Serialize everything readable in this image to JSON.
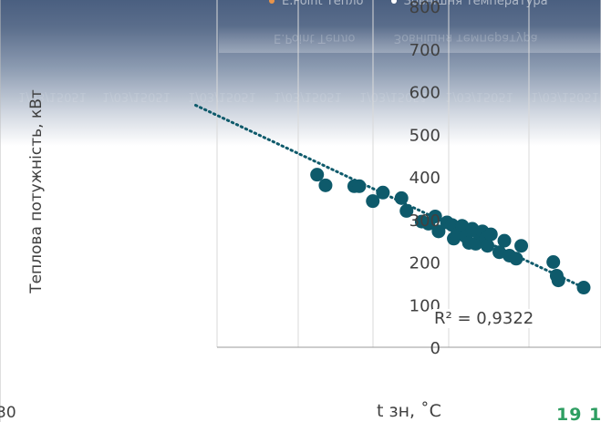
{
  "chart_data": {
    "type": "scatter",
    "title": "",
    "ylabel": "Теплова потужність, кВт",
    "xlabel": "t зн, ˚С",
    "ylim": [
      0,
      800
    ],
    "y_ticks": [
      "0",
      "100",
      "200",
      "300",
      "400",
      "500",
      "600",
      "700",
      "800"
    ],
    "x_tick_partial": "30",
    "grid": true,
    "legend": {
      "placement": "top",
      "entries": [
        {
          "name": "Е.Point Тепло",
          "color": "#e8944a"
        },
        {
          "name": "Зовнішня температура",
          "color": "#ffffff"
        }
      ]
    },
    "marker_color": "#0e5a6b",
    "series": [
      {
        "points": [
          [
            -7.8,
            405
          ],
          [
            -7.3,
            380
          ],
          [
            -5.6,
            378
          ],
          [
            -5.3,
            378
          ],
          [
            -4.5,
            343
          ],
          [
            -3.9,
            363
          ],
          [
            -2.8,
            350
          ],
          [
            -2.5,
            320
          ],
          [
            -1.6,
            295
          ],
          [
            -1.2,
            290
          ],
          [
            -0.8,
            307
          ],
          [
            -0.6,
            272
          ],
          [
            -0.1,
            293
          ],
          [
            0.2,
            287
          ],
          [
            0.3,
            255
          ],
          [
            0.5,
            265
          ],
          [
            0.8,
            285
          ],
          [
            1.0,
            260
          ],
          [
            1.2,
            245
          ],
          [
            1.4,
            278
          ],
          [
            1.6,
            243
          ],
          [
            1.8,
            268
          ],
          [
            2.0,
            272
          ],
          [
            2.2,
            255
          ],
          [
            2.3,
            238
          ],
          [
            2.5,
            265
          ],
          [
            3.0,
            223
          ],
          [
            3.3,
            250
          ],
          [
            3.6,
            215
          ],
          [
            4.0,
            208
          ],
          [
            4.3,
            238
          ],
          [
            6.2,
            200
          ],
          [
            6.4,
            168
          ],
          [
            6.5,
            157
          ],
          [
            8.0,
            140
          ]
        ]
      }
    ],
    "trendline": {
      "type": "linear",
      "style": "dotted",
      "x_start": -15,
      "y_start": 568,
      "x_end": 8,
      "y_end": 140,
      "r_squared_label": "R² = 0,9322"
    }
  },
  "ghost_text": {
    "top_row": [
      "Е.Point Тепло",
      "Зовнішня температура"
    ],
    "band_row": [
      "1/03/15051",
      "1/03/15051",
      "1/03/15051",
      "1/03/15051",
      "1/03/15051",
      "1/03/15051",
      "1/03/15051"
    ]
  },
  "page_number": "19 1"
}
